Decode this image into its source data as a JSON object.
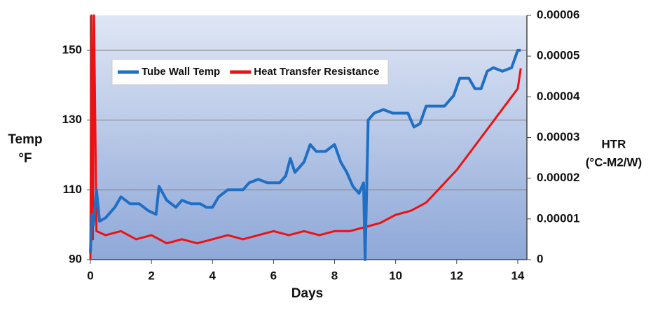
{
  "chart_data": {
    "type": "line",
    "xlabel": "Days",
    "ylabel": [
      "Temp",
      "°F"
    ],
    "y2label": [
      "HTR",
      "(°C-M2/W)"
    ],
    "xlim": [
      0,
      14.3
    ],
    "xticks": [
      0,
      2,
      4,
      6,
      8,
      10,
      12,
      14
    ],
    "ylim": [
      90,
      160
    ],
    "yticks": [
      90,
      110,
      130,
      150
    ],
    "y2lim": [
      0,
      6e-05
    ],
    "y2ticks": [
      0,
      1e-05,
      2e-05,
      3e-05,
      4e-05,
      5e-05,
      6e-05
    ],
    "grid": true,
    "legend": "upper left",
    "series": [
      {
        "name": "Tube Wall Temp",
        "color": "#1f6fc5",
        "x": [
          0,
          0.05,
          0.1,
          0.2,
          0.3,
          0.5,
          0.8,
          1,
          1.3,
          1.6,
          1.9,
          2.15,
          2.25,
          2.5,
          2.8,
          3,
          3.3,
          3.6,
          3.8,
          4,
          4.2,
          4.5,
          4.8,
          5,
          5.2,
          5.5,
          5.8,
          6.2,
          6.4,
          6.55,
          6.7,
          7,
          7.2,
          7.4,
          7.7,
          8,
          8.2,
          8.4,
          8.6,
          8.8,
          8.95,
          9.0,
          9.1,
          9.3,
          9.6,
          9.9,
          10.2,
          10.4,
          10.6,
          10.8,
          11,
          11.3,
          11.6,
          11.9,
          12.1,
          12.4,
          12.6,
          12.8,
          13,
          13.2,
          13.5,
          13.8,
          14,
          14.1
        ],
        "values": [
          92,
          103,
          100,
          110,
          101,
          102,
          105,
          108,
          106,
          106,
          104,
          103,
          111,
          107,
          105,
          107,
          106,
          106,
          105,
          105,
          108,
          110,
          110,
          110,
          112,
          113,
          112,
          112,
          114,
          119,
          115,
          118,
          123,
          121,
          121,
          123,
          118,
          115,
          111,
          109,
          112,
          90,
          130,
          132,
          133,
          132,
          132,
          132,
          128,
          129,
          134,
          134,
          134,
          137,
          142,
          142,
          139,
          139,
          144,
          145,
          144,
          145,
          150,
          150
        ]
      },
      {
        "name": "Heat Transfer Resistance",
        "color": "#ee1111",
        "axis": "y2",
        "x": [
          0,
          0.04,
          0.08,
          0.12,
          0.2,
          0.5,
          1,
          1.5,
          2,
          2.5,
          3,
          3.5,
          4,
          4.5,
          5,
          5.5,
          6,
          6.5,
          7,
          7.5,
          8,
          8.5,
          9,
          9.5,
          10,
          10.5,
          11,
          11.5,
          12,
          12.5,
          13,
          13.5,
          14,
          14.1
        ],
        "values": [
          0,
          6e-05,
          5e-06,
          6e-05,
          7e-06,
          6e-06,
          7e-06,
          5e-06,
          6e-06,
          4e-06,
          5e-06,
          4e-06,
          5e-06,
          6e-06,
          5e-06,
          6e-06,
          7e-06,
          6e-06,
          7e-06,
          6e-06,
          7e-06,
          7e-06,
          8e-06,
          9e-06,
          1.1e-05,
          1.2e-05,
          1.4e-05,
          1.8e-05,
          2.2e-05,
          2.7e-05,
          3.2e-05,
          3.7e-05,
          4.2e-05,
          4.7e-05
        ]
      }
    ]
  }
}
